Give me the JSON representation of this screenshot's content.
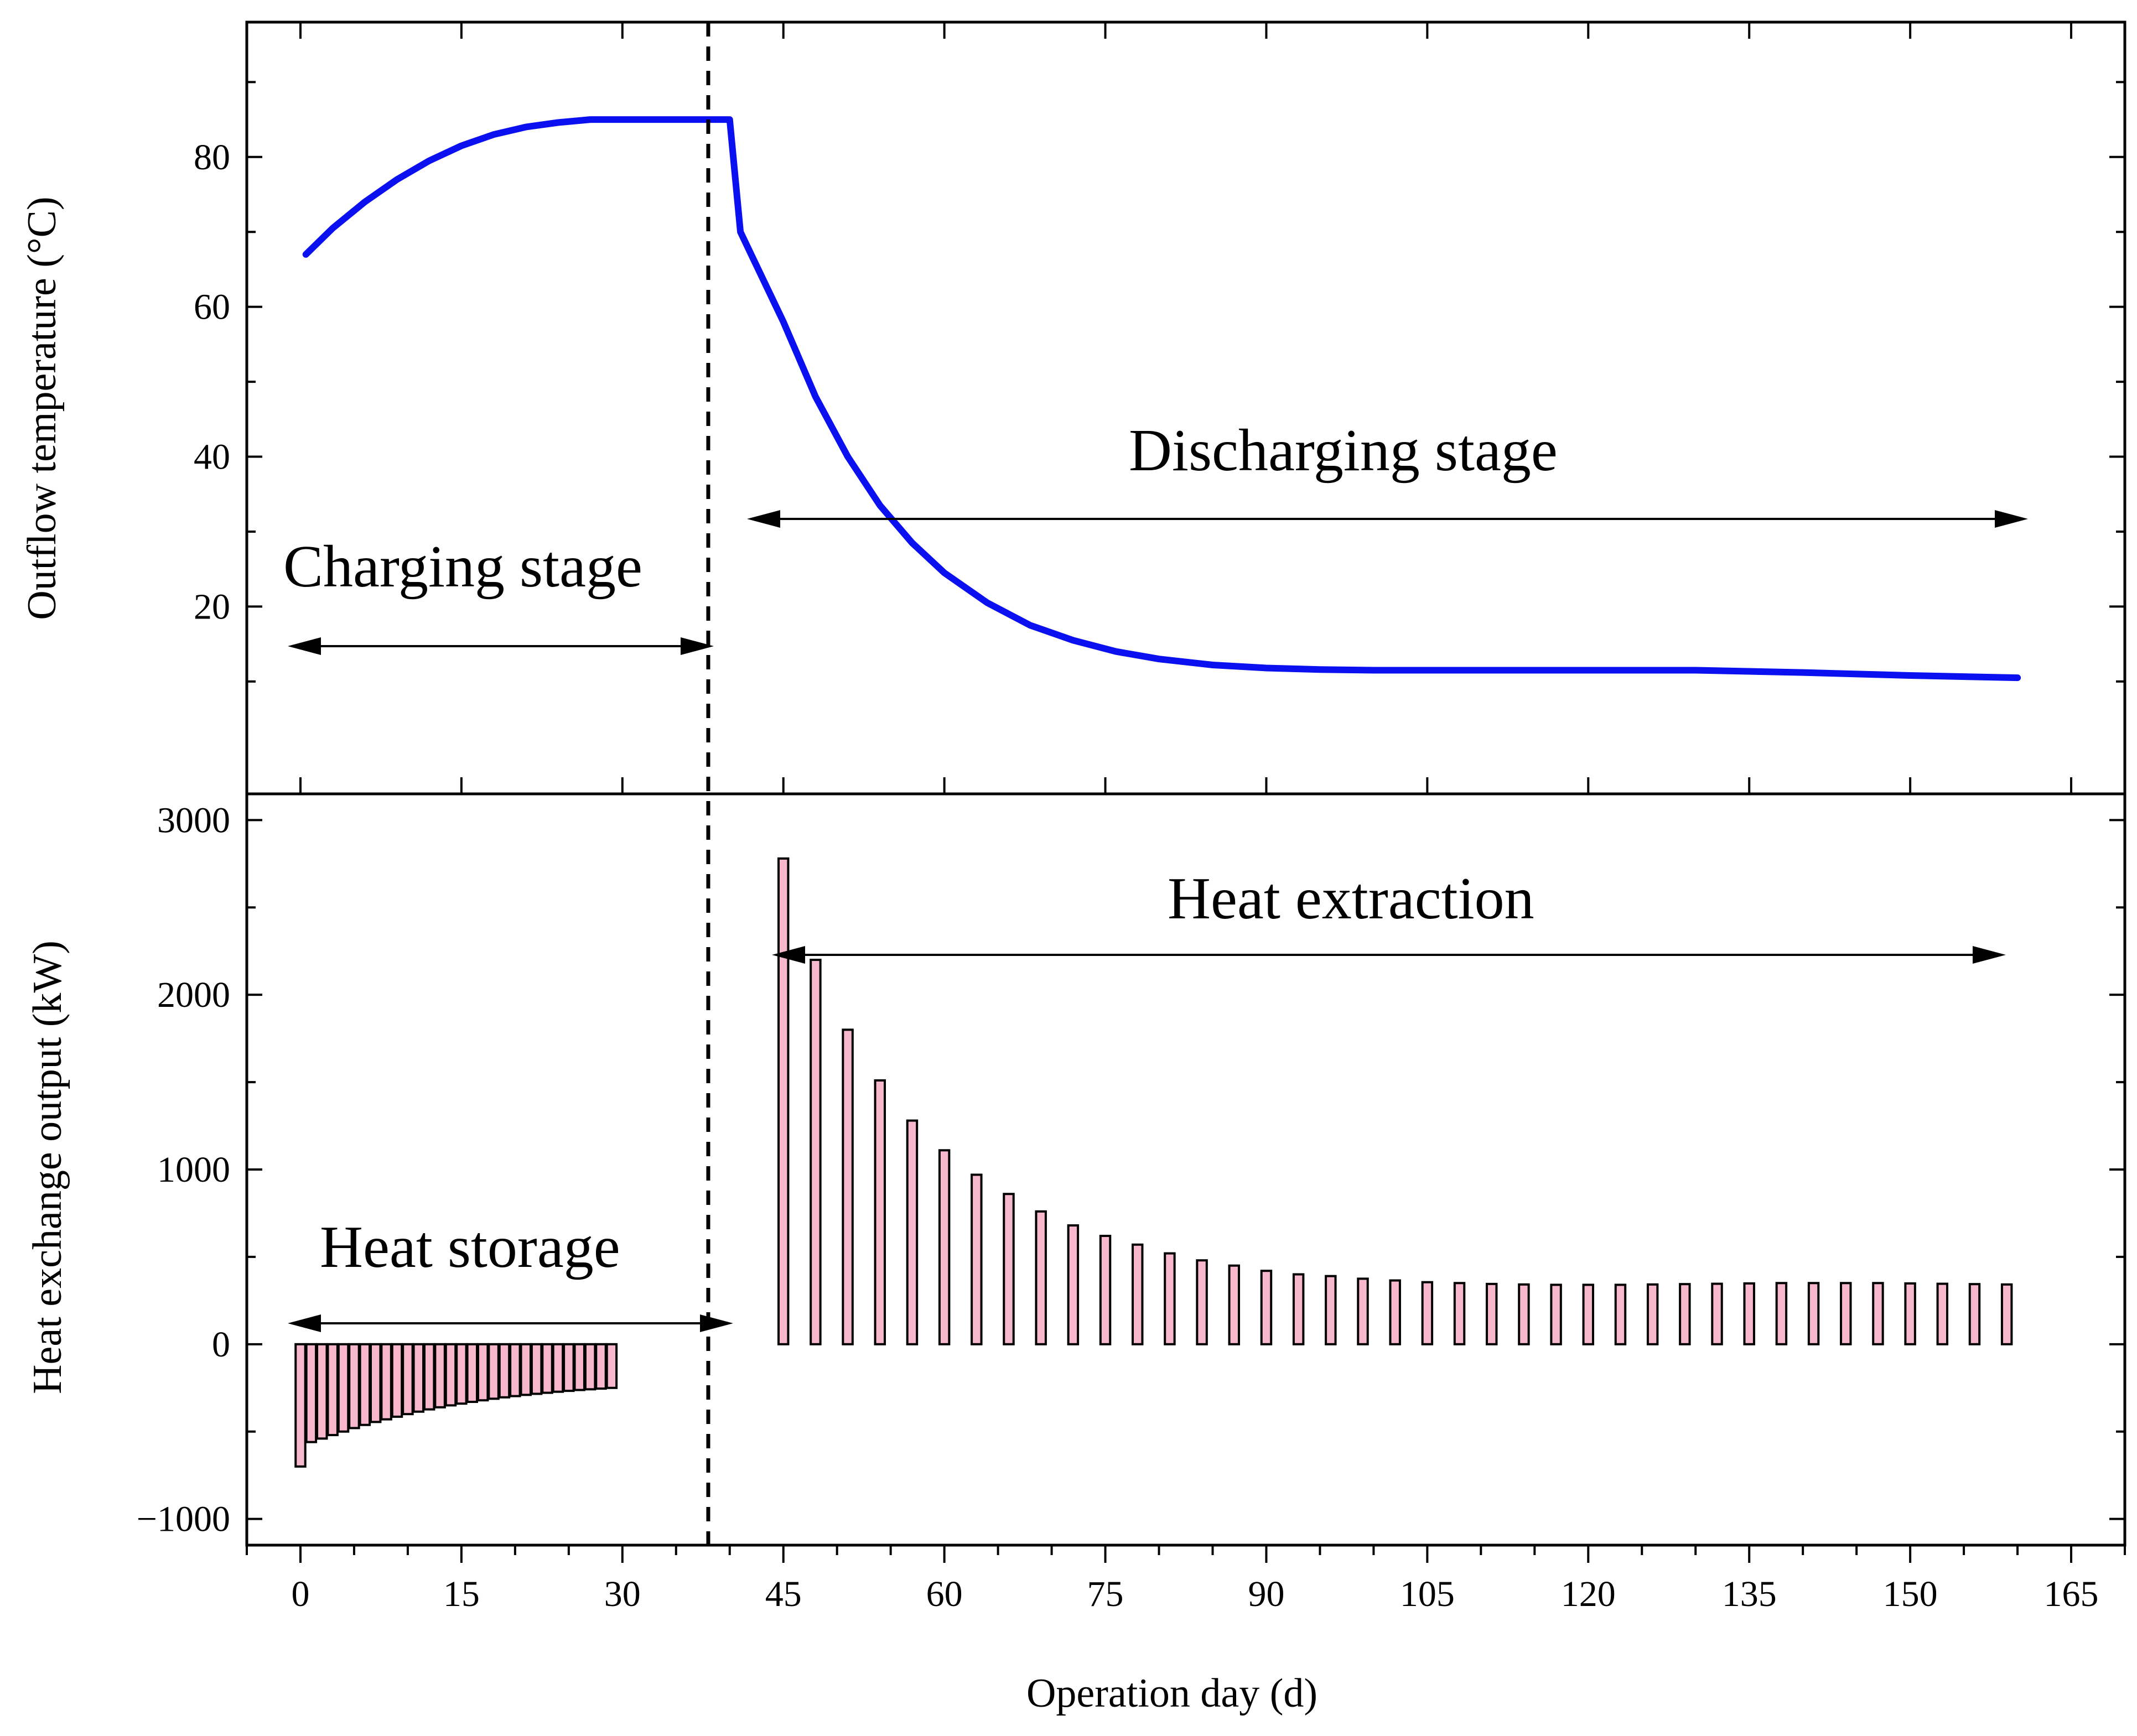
{
  "chart_data": [
    {
      "type": "line",
      "panel": "top",
      "ylabel": "Outflow temperature  (°C)",
      "yticks": [
        20,
        40,
        60,
        80
      ],
      "ylim": [
        -5,
        98
      ],
      "xlim": [
        -5,
        170
      ],
      "series": [
        {
          "name": "Outflow temperature",
          "color": "#0a10f0",
          "x": [
            0.5,
            3,
            6,
            9,
            12,
            15,
            18,
            21,
            24,
            27,
            29,
            33,
            38,
            40,
            41,
            42,
            45,
            48,
            51,
            54,
            57,
            60,
            64,
            68,
            72,
            76,
            80,
            85,
            90,
            95,
            100,
            110,
            120,
            130,
            140,
            150,
            160
          ],
          "y": [
            67,
            70.5,
            74,
            77,
            79.5,
            81.5,
            83,
            84,
            84.6,
            85,
            85,
            85,
            85,
            85,
            70,
            67,
            58,
            48,
            40,
            33.5,
            28.5,
            24.5,
            20.5,
            17.5,
            15.5,
            14,
            13,
            12.2,
            11.8,
            11.6,
            11.5,
            11.5,
            11.5,
            11.5,
            11.2,
            10.8,
            10.5
          ]
        }
      ],
      "annotations": [
        "Discharging stage",
        "Charging stage"
      ]
    },
    {
      "type": "bar",
      "panel": "bottom",
      "ylabel": "Heat exchange output (kW)",
      "xlabel": "Operation day (d)",
      "yticks": [
        -1000,
        0,
        1000,
        2000,
        3000
      ],
      "ylim": [
        -1150,
        3150
      ],
      "xlim": [
        -5,
        170
      ],
      "xticks": [
        0,
        15,
        30,
        45,
        60,
        75,
        90,
        105,
        120,
        135,
        150,
        165
      ],
      "bar_width_days": 0.9,
      "storage_x": [
        0,
        1,
        2,
        3,
        4,
        5,
        6,
        7,
        8,
        9,
        10,
        11,
        12,
        13,
        14,
        15,
        16,
        17,
        18,
        19,
        20,
        21,
        22,
        23,
        24,
        25,
        26,
        27,
        28,
        29
      ],
      "storage_values": [
        -700,
        -560,
        -540,
        -520,
        -500,
        -480,
        -462,
        -445,
        -430,
        -415,
        -400,
        -386,
        -373,
        -361,
        -350,
        -340,
        -330,
        -321,
        -312,
        -304,
        -297,
        -290,
        -284,
        -278,
        -272,
        -267,
        -262,
        -258,
        -254,
        -250
      ],
      "extraction_x": [
        45,
        48,
        51,
        54,
        57,
        60,
        63,
        66,
        69,
        72,
        75,
        78,
        81,
        84,
        87,
        90,
        93,
        96,
        99,
        102,
        105,
        108,
        111,
        114,
        117,
        120,
        123,
        126,
        129,
        132,
        135,
        138,
        141,
        144,
        147,
        150,
        153,
        156,
        159
      ],
      "extraction_values": [
        2780,
        2200,
        1800,
        1510,
        1280,
        1110,
        970,
        860,
        760,
        680,
        620,
        570,
        520,
        480,
        450,
        420,
        400,
        390,
        375,
        365,
        355,
        350,
        345,
        342,
        340,
        340,
        340,
        342,
        344,
        346,
        348,
        350,
        350,
        350,
        350,
        348,
        346,
        344,
        342
      ],
      "annotations": [
        "Heat extraction",
        "Heat storage"
      ]
    }
  ],
  "divider_day": 38,
  "labels": {
    "top_ylabel": "Outflow temperature  (°C)",
    "bottom_ylabel": "Heat exchange output (kW)",
    "xlabel": "Operation day (d)",
    "discharging": "Discharging stage",
    "charging": "Charging stage",
    "extraction": "Heat extraction",
    "storage": "Heat storage"
  }
}
